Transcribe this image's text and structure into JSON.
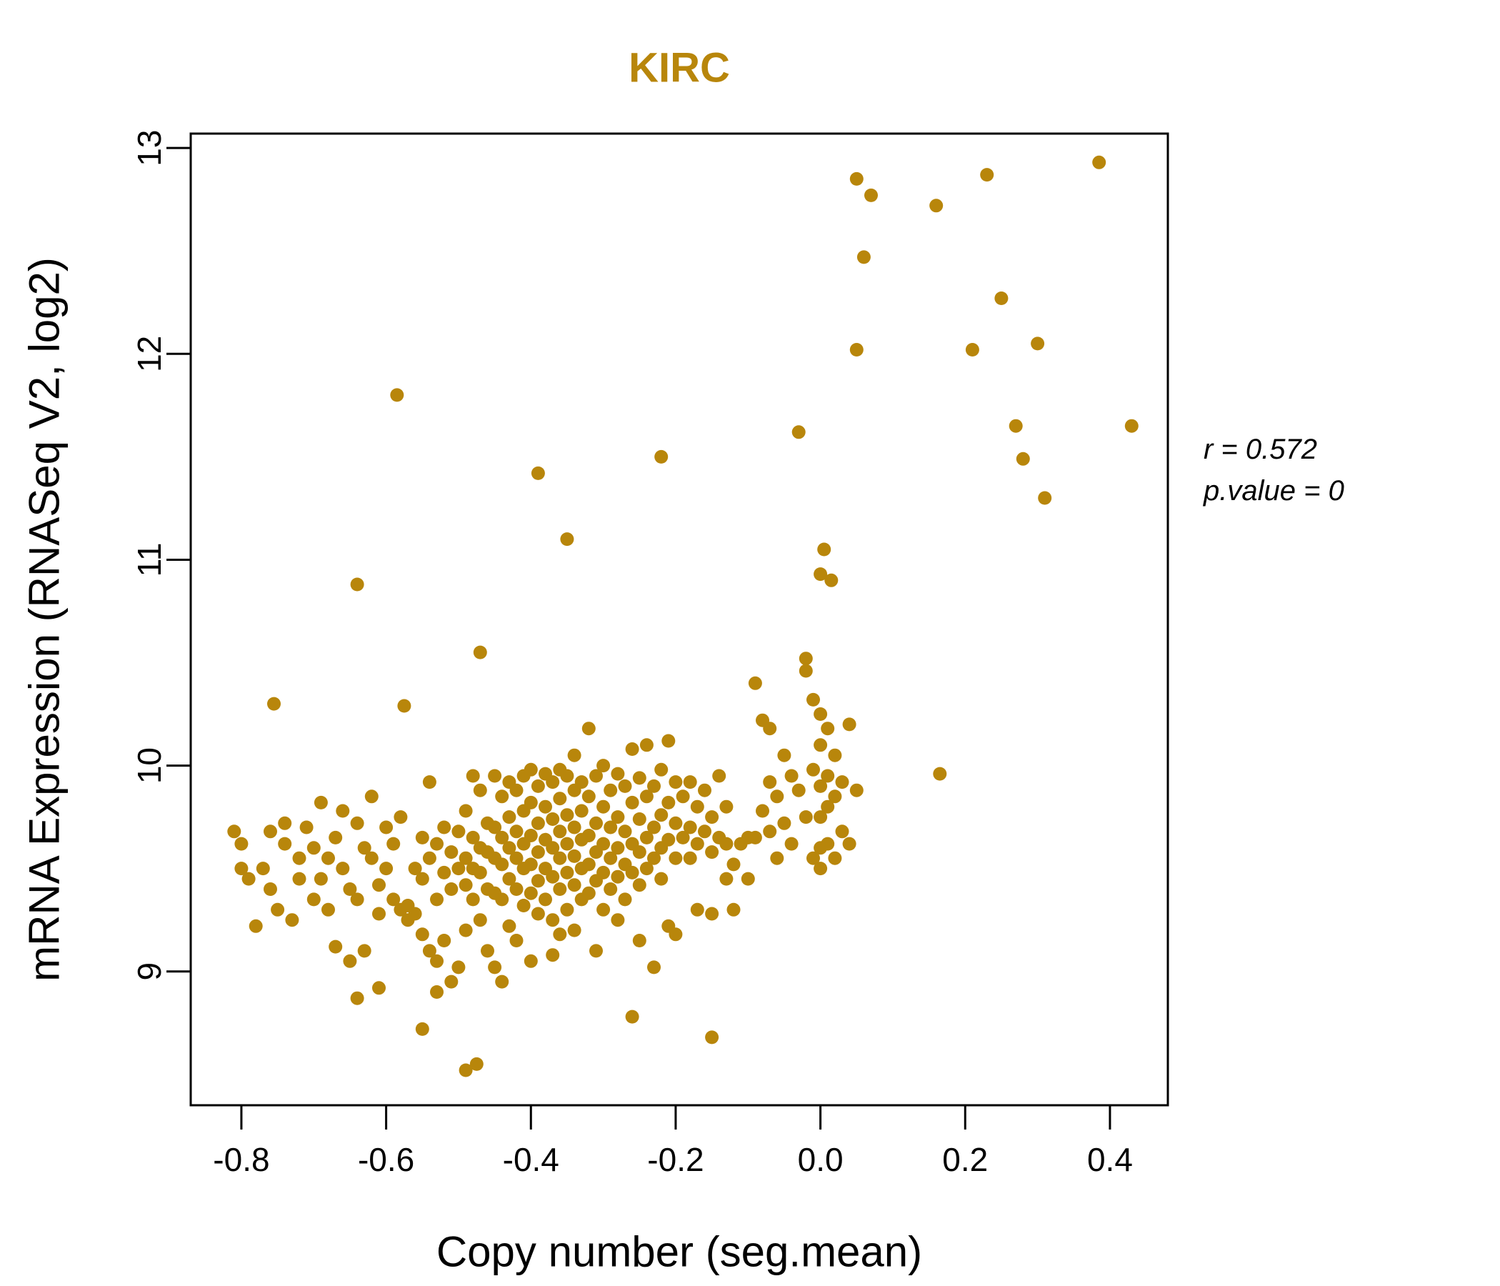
{
  "chart_data": {
    "type": "scatter",
    "title": "KIRC",
    "title_color": "#B8860B",
    "point_color": "#B8860B",
    "xlabel": "Copy number (seg.mean)",
    "ylabel": "mRNA Expression (RNASeq V2, log2)",
    "xlim": [
      -0.87,
      0.48
    ],
    "ylim": [
      8.35,
      13.07
    ],
    "grid": false,
    "x_ticks": [
      {
        "value": -0.8,
        "label": "-0.8"
      },
      {
        "value": -0.6,
        "label": "-0.6"
      },
      {
        "value": -0.4,
        "label": "-0.4"
      },
      {
        "value": -0.2,
        "label": "-0.2"
      },
      {
        "value": 0.0,
        "label": "0.0"
      },
      {
        "value": 0.2,
        "label": "0.2"
      },
      {
        "value": 0.4,
        "label": "0.4"
      }
    ],
    "y_ticks": [
      {
        "value": 9,
        "label": "9"
      },
      {
        "value": 10,
        "label": "10"
      },
      {
        "value": 11,
        "label": "11"
      },
      {
        "value": 12,
        "label": "12"
      },
      {
        "value": 13,
        "label": "13"
      }
    ],
    "annotation": {
      "line1": "r = 0.572",
      "line2": "p.value = 0"
    },
    "points": [
      [
        -0.81,
        9.68
      ],
      [
        -0.8,
        9.62
      ],
      [
        -0.8,
        9.5
      ],
      [
        -0.79,
        9.45
      ],
      [
        -0.78,
        9.22
      ],
      [
        -0.77,
        9.5
      ],
      [
        -0.76,
        9.68
      ],
      [
        -0.76,
        9.4
      ],
      [
        -0.75,
        9.3
      ],
      [
        -0.74,
        9.72
      ],
      [
        -0.74,
        9.62
      ],
      [
        -0.73,
        9.25
      ],
      [
        -0.72,
        9.55
      ],
      [
        -0.72,
        9.45
      ],
      [
        -0.71,
        9.7
      ],
      [
        -0.7,
        9.35
      ],
      [
        -0.7,
        9.6
      ],
      [
        -0.69,
        9.82
      ],
      [
        -0.69,
        9.45
      ],
      [
        -0.68,
        9.55
      ],
      [
        -0.68,
        9.3
      ],
      [
        -0.67,
        9.12
      ],
      [
        -0.67,
        9.65
      ],
      [
        -0.66,
        9.78
      ],
      [
        -0.66,
        9.5
      ],
      [
        -0.65,
        9.4
      ],
      [
        -0.65,
        9.05
      ],
      [
        -0.64,
        9.72
      ],
      [
        -0.64,
        9.35
      ],
      [
        -0.63,
        9.6
      ],
      [
        -0.63,
        9.1
      ],
      [
        -0.62,
        9.85
      ],
      [
        -0.62,
        9.55
      ],
      [
        -0.61,
        9.42
      ],
      [
        -0.61,
        9.28
      ],
      [
        -0.6,
        9.7
      ],
      [
        -0.6,
        9.5
      ],
      [
        -0.59,
        9.62
      ],
      [
        -0.59,
        9.35
      ],
      [
        -0.58,
        9.75
      ],
      [
        -0.58,
        9.3
      ],
      [
        -0.57,
        9.32
      ],
      [
        -0.57,
        9.25
      ],
      [
        -0.56,
        9.5
      ],
      [
        -0.56,
        9.28
      ],
      [
        -0.55,
        9.65
      ],
      [
        -0.55,
        9.45
      ],
      [
        -0.55,
        9.18
      ],
      [
        -0.54,
        9.92
      ],
      [
        -0.54,
        9.55
      ],
      [
        -0.54,
        9.1
      ],
      [
        -0.53,
        9.62
      ],
      [
        -0.53,
        9.35
      ],
      [
        -0.53,
        9.05
      ],
      [
        -0.52,
        9.7
      ],
      [
        -0.52,
        9.48
      ],
      [
        -0.52,
        9.15
      ],
      [
        -0.51,
        9.58
      ],
      [
        -0.51,
        9.4
      ],
      [
        -0.51,
        8.95
      ],
      [
        -0.5,
        9.68
      ],
      [
        -0.5,
        9.5
      ],
      [
        -0.5,
        9.02
      ],
      [
        -0.49,
        9.78
      ],
      [
        -0.49,
        9.55
      ],
      [
        -0.49,
        9.42
      ],
      [
        -0.49,
        9.2
      ],
      [
        -0.48,
        9.95
      ],
      [
        -0.48,
        9.65
      ],
      [
        -0.48,
        9.5
      ],
      [
        -0.48,
        9.35
      ],
      [
        -0.47,
        9.88
      ],
      [
        -0.47,
        9.6
      ],
      [
        -0.47,
        9.48
      ],
      [
        -0.47,
        9.25
      ],
      [
        -0.46,
        9.72
      ],
      [
        -0.46,
        9.58
      ],
      [
        -0.46,
        9.4
      ],
      [
        -0.46,
        9.1
      ],
      [
        -0.45,
        9.95
      ],
      [
        -0.45,
        9.7
      ],
      [
        -0.45,
        9.55
      ],
      [
        -0.45,
        9.38
      ],
      [
        -0.45,
        9.02
      ],
      [
        -0.44,
        9.85
      ],
      [
        -0.44,
        9.65
      ],
      [
        -0.44,
        9.52
      ],
      [
        -0.44,
        9.35
      ],
      [
        -0.43,
        9.92
      ],
      [
        -0.43,
        9.75
      ],
      [
        -0.43,
        9.6
      ],
      [
        -0.43,
        9.45
      ],
      [
        -0.43,
        9.22
      ],
      [
        -0.42,
        9.88
      ],
      [
        -0.42,
        9.68
      ],
      [
        -0.42,
        9.55
      ],
      [
        -0.42,
        9.4
      ],
      [
        -0.42,
        9.15
      ],
      [
        -0.41,
        9.95
      ],
      [
        -0.41,
        9.78
      ],
      [
        -0.41,
        9.62
      ],
      [
        -0.41,
        9.5
      ],
      [
        -0.41,
        9.32
      ],
      [
        -0.4,
        9.98
      ],
      [
        -0.4,
        9.82
      ],
      [
        -0.4,
        9.66
      ],
      [
        -0.4,
        9.52
      ],
      [
        -0.4,
        9.38
      ],
      [
        -0.4,
        9.05
      ],
      [
        -0.39,
        9.9
      ],
      [
        -0.39,
        9.72
      ],
      [
        -0.39,
        9.58
      ],
      [
        -0.39,
        9.44
      ],
      [
        -0.39,
        9.28
      ],
      [
        -0.38,
        9.96
      ],
      [
        -0.38,
        9.8
      ],
      [
        -0.38,
        9.64
      ],
      [
        -0.38,
        9.5
      ],
      [
        -0.38,
        9.35
      ],
      [
        -0.37,
        9.92
      ],
      [
        -0.37,
        9.74
      ],
      [
        -0.37,
        9.6
      ],
      [
        -0.37,
        9.46
      ],
      [
        -0.37,
        9.25
      ],
      [
        -0.36,
        9.98
      ],
      [
        -0.36,
        9.84
      ],
      [
        -0.36,
        9.68
      ],
      [
        -0.36,
        9.55
      ],
      [
        -0.36,
        9.4
      ],
      [
        -0.36,
        9.18
      ],
      [
        -0.35,
        9.95
      ],
      [
        -0.35,
        9.76
      ],
      [
        -0.35,
        9.62
      ],
      [
        -0.35,
        9.48
      ],
      [
        -0.35,
        9.3
      ],
      [
        -0.34,
        10.05
      ],
      [
        -0.34,
        9.88
      ],
      [
        -0.34,
        9.7
      ],
      [
        -0.34,
        9.56
      ],
      [
        -0.34,
        9.42
      ],
      [
        -0.34,
        9.2
      ],
      [
        -0.33,
        9.92
      ],
      [
        -0.33,
        9.78
      ],
      [
        -0.33,
        9.64
      ],
      [
        -0.33,
        9.5
      ],
      [
        -0.33,
        9.35
      ],
      [
        -0.32,
        10.18
      ],
      [
        -0.32,
        9.85
      ],
      [
        -0.32,
        9.66
      ],
      [
        -0.32,
        9.52
      ],
      [
        -0.32,
        9.38
      ],
      [
        -0.31,
        9.95
      ],
      [
        -0.31,
        9.72
      ],
      [
        -0.31,
        9.58
      ],
      [
        -0.31,
        9.44
      ],
      [
        -0.3,
        10.0
      ],
      [
        -0.3,
        9.8
      ],
      [
        -0.3,
        9.62
      ],
      [
        -0.3,
        9.48
      ],
      [
        -0.3,
        9.3
      ],
      [
        -0.29,
        9.88
      ],
      [
        -0.29,
        9.7
      ],
      [
        -0.29,
        9.55
      ],
      [
        -0.29,
        9.4
      ],
      [
        -0.28,
        9.96
      ],
      [
        -0.28,
        9.75
      ],
      [
        -0.28,
        9.6
      ],
      [
        -0.28,
        9.46
      ],
      [
        -0.28,
        9.25
      ],
      [
        -0.27,
        9.9
      ],
      [
        -0.27,
        9.68
      ],
      [
        -0.27,
        9.52
      ],
      [
        -0.27,
        9.35
      ],
      [
        -0.26,
        10.08
      ],
      [
        -0.26,
        9.82
      ],
      [
        -0.26,
        9.62
      ],
      [
        -0.26,
        9.48
      ],
      [
        -0.25,
        9.94
      ],
      [
        -0.25,
        9.74
      ],
      [
        -0.25,
        9.58
      ],
      [
        -0.25,
        9.42
      ],
      [
        -0.25,
        9.15
      ],
      [
        -0.24,
        10.1
      ],
      [
        -0.24,
        9.85
      ],
      [
        -0.24,
        9.65
      ],
      [
        -0.24,
        9.5
      ],
      [
        -0.23,
        9.9
      ],
      [
        -0.23,
        9.7
      ],
      [
        -0.23,
        9.55
      ],
      [
        -0.23,
        9.02
      ],
      [
        -0.22,
        9.98
      ],
      [
        -0.22,
        9.76
      ],
      [
        -0.22,
        9.6
      ],
      [
        -0.22,
        9.45
      ],
      [
        -0.21,
        10.12
      ],
      [
        -0.21,
        9.82
      ],
      [
        -0.21,
        9.64
      ],
      [
        -0.21,
        9.22
      ],
      [
        -0.2,
        9.92
      ],
      [
        -0.2,
        9.72
      ],
      [
        -0.2,
        9.55
      ],
      [
        -0.2,
        9.18
      ],
      [
        -0.19,
        9.85
      ],
      [
        -0.19,
        9.65
      ],
      [
        -0.18,
        9.92
      ],
      [
        -0.18,
        9.7
      ],
      [
        -0.18,
        9.55
      ],
      [
        -0.17,
        9.8
      ],
      [
        -0.17,
        9.62
      ],
      [
        -0.17,
        9.3
      ],
      [
        -0.16,
        9.88
      ],
      [
        -0.16,
        9.68
      ],
      [
        -0.15,
        9.75
      ],
      [
        -0.15,
        9.58
      ],
      [
        -0.15,
        9.28
      ],
      [
        -0.14,
        9.95
      ],
      [
        -0.14,
        9.65
      ],
      [
        -0.13,
        9.8
      ],
      [
        -0.13,
        9.62
      ],
      [
        -0.13,
        9.45
      ],
      [
        -0.12,
        9.52
      ],
      [
        -0.12,
        9.3
      ],
      [
        -0.11,
        9.62
      ],
      [
        -0.1,
        9.65
      ],
      [
        -0.1,
        9.45
      ],
      [
        -0.09,
        10.4
      ],
      [
        -0.09,
        9.65
      ],
      [
        -0.08,
        10.22
      ],
      [
        -0.08,
        9.78
      ],
      [
        -0.07,
        10.18
      ],
      [
        -0.07,
        9.92
      ],
      [
        -0.07,
        9.68
      ],
      [
        -0.06,
        9.85
      ],
      [
        -0.06,
        9.55
      ],
      [
        -0.05,
        10.05
      ],
      [
        -0.05,
        9.72
      ],
      [
        -0.04,
        9.95
      ],
      [
        -0.04,
        9.62
      ],
      [
        -0.03,
        9.88
      ],
      [
        -0.02,
        10.52
      ],
      [
        -0.02,
        10.46
      ],
      [
        -0.02,
        9.75
      ],
      [
        -0.01,
        10.32
      ],
      [
        -0.01,
        9.98
      ],
      [
        -0.01,
        9.55
      ],
      [
        0.0,
        10.25
      ],
      [
        0.0,
        10.1
      ],
      [
        0.0,
        9.9
      ],
      [
        0.0,
        9.75
      ],
      [
        0.0,
        9.6
      ],
      [
        0.0,
        9.5
      ],
      [
        0.01,
        10.18
      ],
      [
        0.01,
        9.95
      ],
      [
        0.01,
        9.8
      ],
      [
        0.01,
        9.62
      ],
      [
        0.02,
        10.05
      ],
      [
        0.02,
        9.85
      ],
      [
        0.02,
        9.55
      ],
      [
        0.03,
        9.92
      ],
      [
        0.03,
        9.68
      ],
      [
        0.04,
        10.2
      ],
      [
        0.04,
        9.62
      ],
      [
        0.05,
        9.88
      ],
      [
        0.05,
        12.85
      ],
      [
        0.07,
        12.77
      ],
      [
        0.06,
        12.47
      ],
      [
        0.05,
        12.02
      ],
      [
        0.16,
        12.72
      ],
      [
        0.23,
        12.87
      ],
      [
        0.25,
        12.27
      ],
      [
        0.21,
        12.02
      ],
      [
        0.3,
        12.05
      ],
      [
        0.27,
        11.65
      ],
      [
        0.28,
        11.49
      ],
      [
        0.31,
        11.3
      ],
      [
        0.385,
        12.93
      ],
      [
        0.43,
        11.65
      ],
      [
        -0.585,
        11.8
      ],
      [
        -0.64,
        10.88
      ],
      [
        -0.47,
        10.55
      ],
      [
        -0.39,
        11.42
      ],
      [
        -0.35,
        11.1
      ],
      [
        -0.22,
        11.5
      ],
      [
        -0.03,
        11.62
      ],
      [
        0.005,
        11.05
      ],
      [
        0.0,
        10.93
      ],
      [
        0.015,
        10.9
      ],
      [
        0.165,
        9.96
      ],
      [
        -0.755,
        10.3
      ],
      [
        -0.575,
        10.29
      ],
      [
        -0.49,
        8.52
      ],
      [
        -0.475,
        8.55
      ],
      [
        -0.55,
        8.72
      ],
      [
        -0.26,
        8.78
      ],
      [
        -0.15,
        8.68
      ],
      [
        -0.64,
        8.87
      ],
      [
        -0.61,
        8.92
      ],
      [
        -0.53,
        8.9
      ],
      [
        -0.44,
        8.95
      ],
      [
        -0.37,
        9.08
      ],
      [
        -0.31,
        9.1
      ]
    ]
  }
}
